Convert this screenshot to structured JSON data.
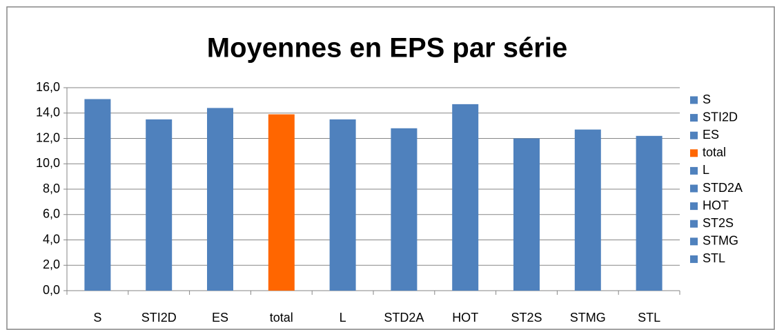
{
  "chart_data": {
    "type": "bar",
    "title": "Moyennes en EPS par série",
    "categories": [
      "S",
      "STI2D",
      "ES",
      "total",
      "L",
      "STD2A",
      "HOT",
      "ST2S",
      "STMG",
      "STL"
    ],
    "values": [
      15.1,
      13.5,
      14.4,
      13.9,
      13.5,
      12.8,
      14.7,
      12.0,
      12.7,
      12.2
    ],
    "colors": [
      "#4f81bd",
      "#4f81bd",
      "#4f81bd",
      "#ff6600",
      "#4f81bd",
      "#4f81bd",
      "#4f81bd",
      "#4f81bd",
      "#4f81bd",
      "#4f81bd"
    ],
    "ylim": [
      0,
      16
    ],
    "yticks": [
      {
        "value": 0,
        "label": "0,0"
      },
      {
        "value": 2,
        "label": "2,0"
      },
      {
        "value": 4,
        "label": "4,0"
      },
      {
        "value": 6,
        "label": "6,0"
      },
      {
        "value": 8,
        "label": "8,0"
      },
      {
        "value": 10,
        "label": "10,0"
      },
      {
        "value": 12,
        "label": "12,0"
      },
      {
        "value": 14,
        "label": "14,0"
      },
      {
        "value": 16,
        "label": "16,0"
      }
    ],
    "grid": true,
    "legend": "right"
  }
}
